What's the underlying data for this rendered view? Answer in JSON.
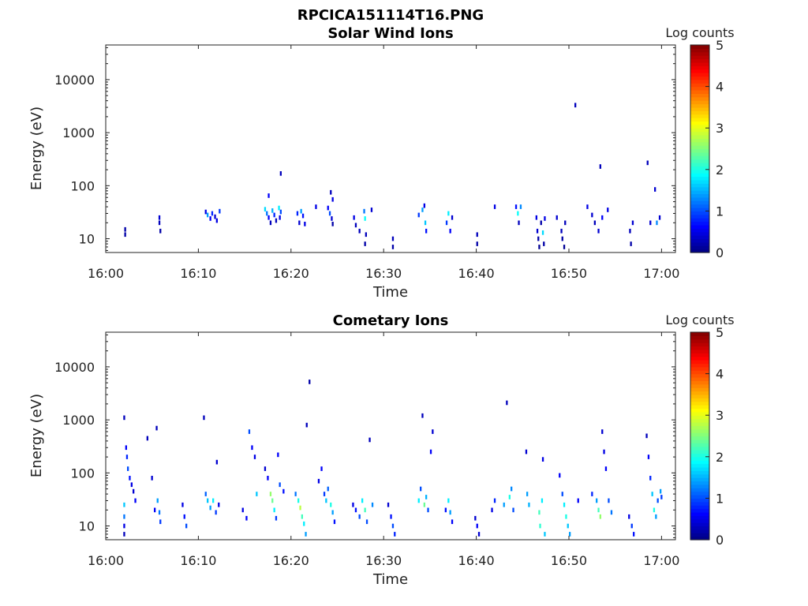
{
  "figure_title": "RPCICA151114T16.PNG",
  "colormap": [
    "#00007f",
    "#0000ff",
    "#007fff",
    "#00ffff",
    "#7fff7f",
    "#ffff00",
    "#ff7f00",
    "#ff0000",
    "#7f0000"
  ],
  "chart_data": [
    {
      "type": "heatmap",
      "title": "Solar Wind Ions",
      "xlabel": "Time",
      "ylabel": "Energy (eV)",
      "y_scale": "log",
      "x_ticks": [
        "16:00",
        "16:10",
        "16:20",
        "16:30",
        "16:40",
        "16:50",
        "17:00"
      ],
      "y_ticks": [
        "10",
        "100",
        "1000",
        "10000"
      ],
      "colorbar": {
        "label": "Log counts",
        "min": 0,
        "max": 5,
        "ticks": [
          "0",
          "1",
          "2",
          "3",
          "4",
          "5"
        ]
      },
      "cells": [
        [
          2.1,
          15,
          0.2
        ],
        [
          2.1,
          12,
          0.2
        ],
        [
          5.8,
          25,
          0.4
        ],
        [
          5.8,
          20,
          0.3
        ],
        [
          5.9,
          14,
          0.2
        ],
        [
          10.8,
          32,
          0.5
        ],
        [
          11.0,
          28,
          1.4
        ],
        [
          11.3,
          24,
          0.6
        ],
        [
          11.5,
          30,
          0.8
        ],
        [
          11.8,
          26,
          0.4
        ],
        [
          12.0,
          22,
          0.5
        ],
        [
          12.3,
          33,
          0.9
        ],
        [
          17.2,
          36,
          1.7
        ],
        [
          17.4,
          30,
          1.2
        ],
        [
          17.6,
          25,
          0.6
        ],
        [
          17.8,
          20,
          0.3
        ],
        [
          17.6,
          65,
          0.6
        ],
        [
          18.0,
          34,
          1.5
        ],
        [
          18.2,
          28,
          0.8
        ],
        [
          18.4,
          22,
          0.3
        ],
        [
          18.7,
          38,
          1.8
        ],
        [
          18.9,
          32,
          1.0
        ],
        [
          18.8,
          25,
          0.5
        ],
        [
          18.9,
          170,
          0.3
        ],
        [
          20.7,
          30,
          0.8
        ],
        [
          20.9,
          20,
          0.4
        ],
        [
          21.1,
          33,
          1.4
        ],
        [
          21.3,
          27,
          0.7
        ],
        [
          21.5,
          19,
          0.5
        ],
        [
          22.7,
          40,
          0.5
        ],
        [
          24.0,
          38,
          0.6
        ],
        [
          24.2,
          30,
          1.0
        ],
        [
          24.3,
          75,
          0.3
        ],
        [
          24.4,
          24,
          0.4
        ],
        [
          24.5,
          55,
          0.5
        ],
        [
          24.5,
          19,
          0.2
        ],
        [
          26.8,
          25,
          0.5
        ],
        [
          27.0,
          18,
          0.3
        ],
        [
          27.4,
          14,
          0.3
        ],
        [
          27.9,
          33,
          1.2
        ],
        [
          28.0,
          24,
          1.9
        ],
        [
          28.1,
          12,
          0.3
        ],
        [
          28.0,
          8,
          0.2
        ],
        [
          28.7,
          35,
          0.4
        ],
        [
          31.0,
          10,
          0.3
        ],
        [
          31.0,
          7,
          0.2
        ],
        [
          33.8,
          28,
          0.9
        ],
        [
          34.2,
          35,
          1.4
        ],
        [
          34.4,
          42,
          0.5
        ],
        [
          34.5,
          20,
          1.6
        ],
        [
          34.6,
          14,
          0.7
        ],
        [
          36.8,
          20,
          0.9
        ],
        [
          37.0,
          30,
          1.8
        ],
        [
          37.2,
          14,
          0.6
        ],
        [
          37.4,
          25,
          0.4
        ],
        [
          40.1,
          12,
          0.3
        ],
        [
          40.1,
          8,
          0.2
        ],
        [
          42.0,
          40,
          0.5
        ],
        [
          44.3,
          40,
          0.7
        ],
        [
          44.5,
          30,
          1.9
        ],
        [
          44.6,
          20,
          0.3
        ],
        [
          44.8,
          40,
          1.3
        ],
        [
          46.5,
          25,
          0.5
        ],
        [
          46.6,
          14,
          0.4
        ],
        [
          46.7,
          10,
          0.2
        ],
        [
          46.8,
          7,
          0.1
        ],
        [
          47.0,
          20,
          0.2
        ],
        [
          47.2,
          13,
          1.7
        ],
        [
          47.3,
          8,
          0.2
        ],
        [
          47.4,
          24,
          0.5
        ],
        [
          48.7,
          25,
          0.4
        ],
        [
          49.2,
          14,
          0.3
        ],
        [
          49.3,
          10,
          0.2
        ],
        [
          49.5,
          7,
          0.1
        ],
        [
          49.6,
          20,
          0.3
        ],
        [
          50.7,
          3300,
          0.3
        ],
        [
          52.0,
          40,
          0.5
        ],
        [
          52.5,
          28,
          0.4
        ],
        [
          52.8,
          20,
          0.3
        ],
        [
          53.2,
          14,
          0.4
        ],
        [
          53.4,
          230,
          0.3
        ],
        [
          53.6,
          25,
          0.6
        ],
        [
          54.2,
          35,
          0.5
        ],
        [
          56.6,
          14,
          0.3
        ],
        [
          56.7,
          8,
          0.2
        ],
        [
          56.9,
          20,
          0.4
        ],
        [
          58.5,
          270,
          0.3
        ],
        [
          58.8,
          20,
          0.4
        ],
        [
          59.3,
          85,
          0.4
        ],
        [
          59.5,
          20,
          1.3
        ],
        [
          59.8,
          25,
          0.4
        ]
      ]
    },
    {
      "type": "heatmap",
      "title": "Cometary Ions",
      "xlabel": "Time",
      "ylabel": "Energy (eV)",
      "y_scale": "log",
      "x_ticks": [
        "16:00",
        "16:10",
        "16:20",
        "16:30",
        "16:40",
        "16:50",
        "17:00"
      ],
      "y_ticks": [
        "10",
        "100",
        "1000",
        "10000"
      ],
      "colorbar": {
        "label": "Log counts",
        "min": 0,
        "max": 5,
        "ticks": [
          "0",
          "1",
          "2",
          "3",
          "4",
          "5"
        ]
      },
      "cells": [
        [
          2.0,
          1100,
          0.3
        ],
        [
          2.0,
          25,
          1.6
        ],
        [
          2.0,
          15,
          1.2
        ],
        [
          2.0,
          10,
          0.5
        ],
        [
          2.0,
          7,
          0.3
        ],
        [
          2.2,
          300,
          0.6
        ],
        [
          2.3,
          200,
          0.8
        ],
        [
          2.4,
          120,
          1.0
        ],
        [
          2.6,
          80,
          0.7
        ],
        [
          2.8,
          60,
          0.5
        ],
        [
          3.0,
          45,
          0.4
        ],
        [
          3.2,
          30,
          0.6
        ],
        [
          4.5,
          450,
          0.3
        ],
        [
          5.0,
          80,
          0.4
        ],
        [
          5.3,
          20,
          0.6
        ],
        [
          5.6,
          30,
          1.4
        ],
        [
          5.8,
          18,
          1.2
        ],
        [
          5.5,
          700,
          0.3
        ],
        [
          5.9,
          12,
          0.9
        ],
        [
          8.3,
          25,
          0.5
        ],
        [
          8.5,
          15,
          0.7
        ],
        [
          8.7,
          10,
          1.0
        ],
        [
          10.6,
          1100,
          0.3
        ],
        [
          10.8,
          40,
          1.1
        ],
        [
          11.0,
          30,
          1.6
        ],
        [
          11.3,
          22,
          1.4
        ],
        [
          11.6,
          30,
          1.8
        ],
        [
          11.9,
          18,
          0.9
        ],
        [
          12.2,
          25,
          0.5
        ],
        [
          12.0,
          160,
          0.4
        ],
        [
          14.8,
          20,
          0.5
        ],
        [
          15.2,
          14,
          0.6
        ],
        [
          15.5,
          600,
          1.0
        ],
        [
          15.8,
          300,
          0.6
        ],
        [
          16.1,
          200,
          0.5
        ],
        [
          16.3,
          40,
          1.6
        ],
        [
          17.2,
          120,
          0.4
        ],
        [
          17.5,
          80,
          0.6
        ],
        [
          17.8,
          40,
          2.6
        ],
        [
          18.0,
          30,
          2.4
        ],
        [
          18.2,
          20,
          1.8
        ],
        [
          18.4,
          14,
          0.9
        ],
        [
          18.6,
          220,
          0.6
        ],
        [
          18.8,
          60,
          1.0
        ],
        [
          19.2,
          45,
          0.7
        ],
        [
          20.5,
          40,
          1.2
        ],
        [
          20.8,
          30,
          2.0
        ],
        [
          21.0,
          22,
          2.8
        ],
        [
          21.2,
          15,
          2.2
        ],
        [
          21.4,
          11,
          1.8
        ],
        [
          21.6,
          7,
          1.4
        ],
        [
          22.0,
          5200,
          0.2
        ],
        [
          21.7,
          800,
          0.3
        ],
        [
          23.0,
          70,
          0.5
        ],
        [
          23.3,
          120,
          0.6
        ],
        [
          23.6,
          40,
          0.9
        ],
        [
          23.8,
          30,
          1.6
        ],
        [
          24.0,
          50,
          1.1
        ],
        [
          24.3,
          25,
          2.0
        ],
        [
          24.5,
          18,
          1.4
        ],
        [
          24.7,
          12,
          0.7
        ],
        [
          26.7,
          25,
          0.5
        ],
        [
          27.0,
          20,
          0.7
        ],
        [
          27.4,
          15,
          1.0
        ],
        [
          27.7,
          30,
          1.8
        ],
        [
          28.0,
          20,
          2.2
        ],
        [
          28.2,
          12,
          1.0
        ],
        [
          28.5,
          420,
          0.3
        ],
        [
          28.8,
          25,
          1.3
        ],
        [
          30.5,
          25,
          0.4
        ],
        [
          30.8,
          15,
          0.7
        ],
        [
          31.0,
          10,
          1.0
        ],
        [
          31.2,
          7,
          0.8
        ],
        [
          33.8,
          30,
          1.8
        ],
        [
          34.0,
          50,
          1.0
        ],
        [
          34.2,
          1200,
          0.3
        ],
        [
          34.4,
          25,
          2.4
        ],
        [
          34.6,
          35,
          1.5
        ],
        [
          34.8,
          20,
          1.0
        ],
        [
          35.1,
          250,
          0.6
        ],
        [
          35.3,
          600,
          0.4
        ],
        [
          36.7,
          20,
          0.7
        ],
        [
          37.0,
          30,
          1.8
        ],
        [
          37.2,
          18,
          1.4
        ],
        [
          37.4,
          12,
          0.6
        ],
        [
          39.9,
          14,
          0.4
        ],
        [
          40.1,
          10,
          0.6
        ],
        [
          40.3,
          7,
          0.4
        ],
        [
          41.7,
          20,
          0.5
        ],
        [
          42.0,
          30,
          0.8
        ],
        [
          43.0,
          25,
          1.4
        ],
        [
          43.3,
          2100,
          0.3
        ],
        [
          43.6,
          35,
          2.0
        ],
        [
          43.8,
          50,
          1.3
        ],
        [
          44.0,
          20,
          1.0
        ],
        [
          45.4,
          250,
          0.4
        ],
        [
          45.5,
          40,
          1.4
        ],
        [
          45.7,
          25,
          1.5
        ],
        [
          46.8,
          18,
          2.2
        ],
        [
          46.9,
          10,
          2.1
        ],
        [
          47.1,
          30,
          1.8
        ],
        [
          47.4,
          7,
          1.6
        ],
        [
          47.2,
          180,
          0.5
        ],
        [
          49.0,
          90,
          0.6
        ],
        [
          49.3,
          40,
          1.0
        ],
        [
          49.5,
          25,
          1.8
        ],
        [
          49.7,
          15,
          2.0
        ],
        [
          49.9,
          10,
          1.6
        ],
        [
          50.1,
          7,
          1.4
        ],
        [
          51.0,
          30,
          0.6
        ],
        [
          52.5,
          40,
          0.8
        ],
        [
          53.0,
          30,
          1.4
        ],
        [
          53.2,
          20,
          2.2
        ],
        [
          53.4,
          15,
          2.6
        ],
        [
          53.6,
          600,
          0.4
        ],
        [
          53.8,
          250,
          0.5
        ],
        [
          54.0,
          120,
          0.6
        ],
        [
          54.3,
          30,
          1.0
        ],
        [
          54.6,
          18,
          1.2
        ],
        [
          56.5,
          15,
          0.5
        ],
        [
          56.8,
          10,
          0.9
        ],
        [
          57.0,
          7,
          0.7
        ],
        [
          58.4,
          500,
          0.3
        ],
        [
          58.6,
          200,
          0.6
        ],
        [
          58.8,
          80,
          0.8
        ],
        [
          59.0,
          40,
          1.6
        ],
        [
          59.2,
          20,
          2.0
        ],
        [
          59.4,
          15,
          1.4
        ],
        [
          59.6,
          30,
          1.0
        ],
        [
          59.9,
          45,
          1.4
        ],
        [
          60.0,
          35,
          0.9
        ]
      ]
    }
  ]
}
